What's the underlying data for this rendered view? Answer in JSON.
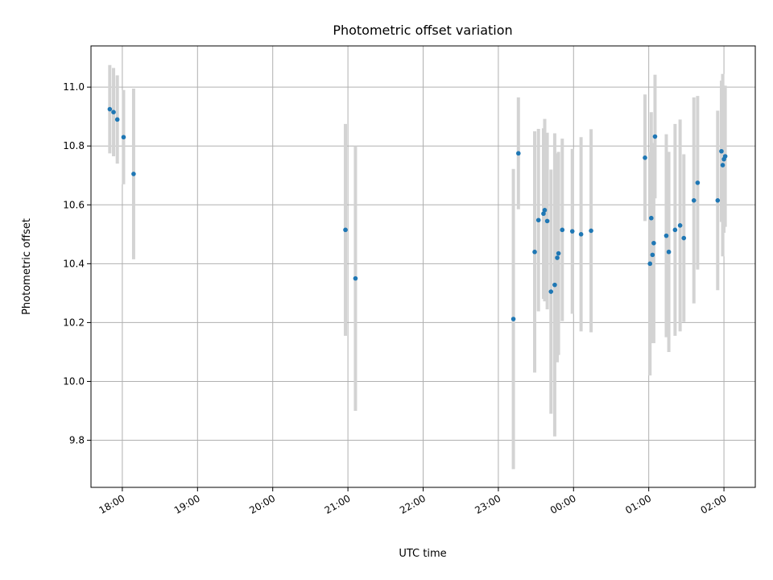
{
  "chart_data": {
    "type": "scatter",
    "title": "Photometric offset variation",
    "xlabel": "UTC time",
    "ylabel": "Photometric offset",
    "xlim": [
      "17:35",
      "02:25"
    ],
    "ylim": [
      9.64,
      11.14
    ],
    "x_tick_labels": [
      "18:00",
      "19:00",
      "20:00",
      "21:00",
      "22:00",
      "23:00",
      "00:00",
      "01:00",
      "02:00"
    ],
    "x_tick_times": [
      "18:00",
      "19:00",
      "20:00",
      "21:00",
      "22:00",
      "23:00",
      "00:00",
      "01:00",
      "02:00"
    ],
    "y_ticks": [
      9.8,
      10.0,
      10.2,
      10.4,
      10.6,
      10.8,
      11.0
    ],
    "grid": true,
    "colors": {
      "points": "#1f77b4",
      "errorbars": "#d3d3d3"
    },
    "points": [
      {
        "t": "17:50",
        "y": 10.925,
        "err": 0.15
      },
      {
        "t": "17:53",
        "y": 10.915,
        "err": 0.15
      },
      {
        "t": "17:56",
        "y": 10.89,
        "err": 0.15
      },
      {
        "t": "18:01",
        "y": 10.83,
        "err": 0.16
      },
      {
        "t": "18:09",
        "y": 10.705,
        "err": 0.29
      },
      {
        "t": "20:58",
        "y": 10.515,
        "err": 0.36
      },
      {
        "t": "21:06",
        "y": 10.35,
        "err": 0.45
      },
      {
        "t": "23:12",
        "y": 10.212,
        "err": 0.51
      },
      {
        "t": "23:16",
        "y": 10.775,
        "err": 0.19
      },
      {
        "t": "23:29",
        "y": 10.44,
        "err": 0.41
      },
      {
        "t": "23:32",
        "y": 10.548,
        "err": 0.31
      },
      {
        "t": "23:36",
        "y": 10.57,
        "err": 0.29
      },
      {
        "t": "23:37",
        "y": 10.582,
        "err": 0.31
      },
      {
        "t": "23:39",
        "y": 10.545,
        "err": 0.3
      },
      {
        "t": "23:42",
        "y": 10.305,
        "err": 0.415
      },
      {
        "t": "23:45",
        "y": 10.328,
        "err": 0.515
      },
      {
        "t": "23:47",
        "y": 10.42,
        "err": 0.355
      },
      {
        "t": "23:48",
        "y": 10.435,
        "err": 0.345
      },
      {
        "t": "23:51",
        "y": 10.515,
        "err": 0.31
      },
      {
        "t": "23:59",
        "y": 10.51,
        "err": 0.28
      },
      {
        "t": "00:06",
        "y": 10.5,
        "err": 0.33
      },
      {
        "t": "00:14",
        "y": 10.512,
        "err": 0.345
      },
      {
        "t": "00:57",
        "y": 10.76,
        "err": 0.215
      },
      {
        "t": "01:01",
        "y": 10.4,
        "err": 0.38
      },
      {
        "t": "01:02",
        "y": 10.555,
        "err": 0.36
      },
      {
        "t": "01:03",
        "y": 10.43,
        "err": 0.3
      },
      {
        "t": "01:04",
        "y": 10.47,
        "err": 0.34
      },
      {
        "t": "01:05",
        "y": 10.832,
        "err": 0.21
      },
      {
        "t": "01:14",
        "y": 10.495,
        "err": 0.345
      },
      {
        "t": "01:16",
        "y": 10.44,
        "err": 0.34
      },
      {
        "t": "01:21",
        "y": 10.515,
        "err": 0.36
      },
      {
        "t": "01:25",
        "y": 10.53,
        "err": 0.36
      },
      {
        "t": "01:28",
        "y": 10.487,
        "err": 0.285
      },
      {
        "t": "01:36",
        "y": 10.615,
        "err": 0.35
      },
      {
        "t": "01:39",
        "y": 10.675,
        "err": 0.295
      },
      {
        "t": "01:55",
        "y": 10.615,
        "err": 0.305
      },
      {
        "t": "01:58",
        "y": 10.782,
        "err": 0.24
      },
      {
        "t": "01:59",
        "y": 10.735,
        "err": 0.31
      },
      {
        "t": "02:00",
        "y": 10.755,
        "err": 0.25
      },
      {
        "t": "02:01",
        "y": 10.765,
        "err": 0.24
      }
    ]
  }
}
